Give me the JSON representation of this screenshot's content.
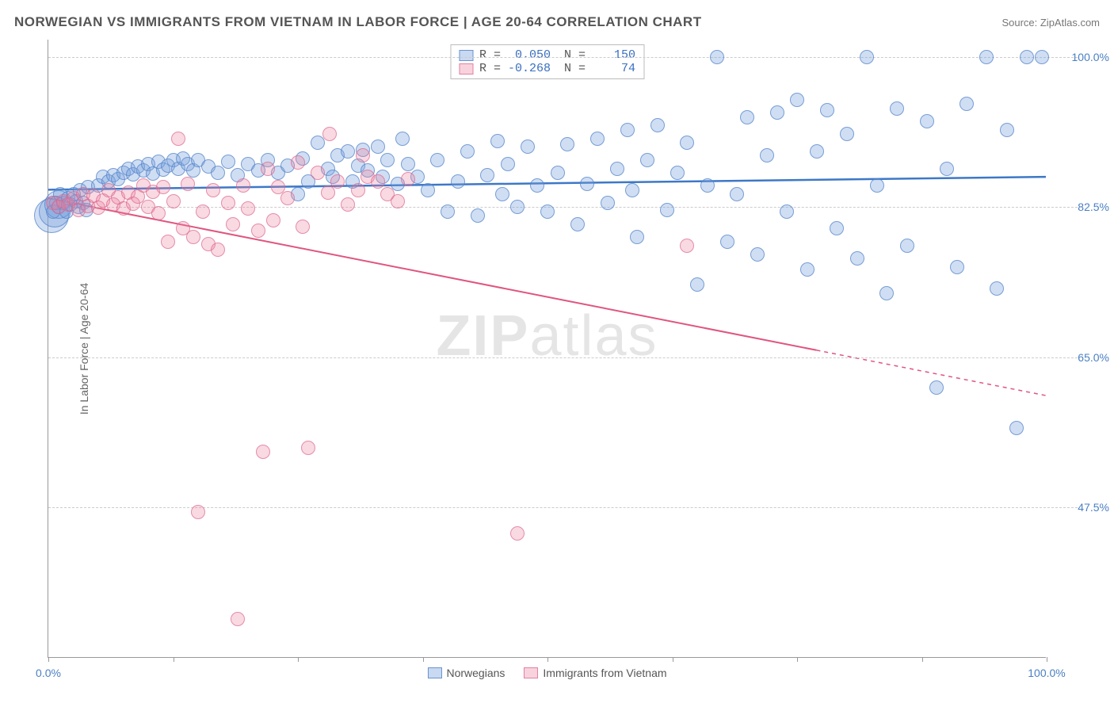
{
  "title": "NORWEGIAN VS IMMIGRANTS FROM VIETNAM IN LABOR FORCE | AGE 20-64 CORRELATION CHART",
  "source": "Source: ZipAtlas.com",
  "watermark_a": "ZIP",
  "watermark_b": "atlas",
  "chart": {
    "type": "scatter",
    "y_axis_title": "In Labor Force | Age 20-64",
    "xlim": [
      0,
      100
    ],
    "ylim": [
      30,
      102
    ],
    "y_ticks": [
      47.5,
      65.0,
      82.5,
      100.0
    ],
    "y_tick_labels": [
      "47.5%",
      "65.0%",
      "82.5%",
      "100.0%"
    ],
    "x_ticks": [
      0,
      12.5,
      25,
      37.5,
      50,
      62.5,
      75,
      87.5,
      100
    ],
    "x_tick_labels": {
      "0": "0.0%",
      "100": "100.0%"
    },
    "grid_color": "#cccccc",
    "axis_color": "#999999",
    "background_color": "#ffffff",
    "marker_radius": 9,
    "series": [
      {
        "name": "Norwegians",
        "color_fill": "rgba(120,160,220,0.35)",
        "color_stroke": "rgba(80,130,200,0.7)",
        "R": "0.050",
        "N": "150",
        "trend": {
          "y_start": 84.5,
          "y_end": 86.0,
          "stroke": "#3d78c7",
          "width": 2.5,
          "x_solid_start": 0,
          "x_solid_end": 100
        },
        "points": [
          [
            0.5,
            82
          ],
          [
            0.8,
            83
          ],
          [
            1,
            82.5
          ],
          [
            1.2,
            84
          ],
          [
            1.5,
            83
          ],
          [
            1.8,
            82
          ],
          [
            2,
            83.5
          ],
          [
            2.2,
            82.8
          ],
          [
            2.5,
            84
          ],
          [
            2.8,
            83.2
          ],
          [
            3,
            82.5
          ],
          [
            3.2,
            84.5
          ],
          [
            3.5,
            83
          ],
          [
            3.8,
            82.2
          ],
          [
            4,
            84.8
          ],
          [
            5,
            85
          ],
          [
            5.5,
            86
          ],
          [
            6,
            85.5
          ],
          [
            6.5,
            86.2
          ],
          [
            7,
            85.8
          ],
          [
            7.5,
            86.5
          ],
          [
            8,
            87
          ],
          [
            8.5,
            86.3
          ],
          [
            9,
            87.2
          ],
          [
            9.5,
            86.8
          ],
          [
            10,
            87.5
          ],
          [
            10.5,
            86.4
          ],
          [
            11,
            87.8
          ],
          [
            11.5,
            86.9
          ],
          [
            12,
            87.3
          ],
          [
            12.5,
            88
          ],
          [
            13,
            87
          ],
          [
            13.5,
            88.2
          ],
          [
            14,
            87.5
          ],
          [
            14.5,
            86.8
          ],
          [
            15,
            88
          ],
          [
            16,
            87.2
          ],
          [
            17,
            86.5
          ],
          [
            18,
            87.8
          ],
          [
            19,
            86.2
          ],
          [
            20,
            87.5
          ],
          [
            21,
            86.8
          ],
          [
            22,
            88
          ],
          [
            23,
            86.5
          ],
          [
            24,
            87.3
          ],
          [
            25,
            84
          ],
          [
            25.5,
            88.2
          ],
          [
            26,
            85.5
          ],
          [
            27,
            90
          ],
          [
            28,
            87
          ],
          [
            28.5,
            86
          ],
          [
            29,
            88.5
          ],
          [
            30,
            89
          ],
          [
            30.5,
            85.5
          ],
          [
            31,
            87.3
          ],
          [
            31.5,
            89.2
          ],
          [
            32,
            86.8
          ],
          [
            33,
            89.5
          ],
          [
            33.5,
            86
          ],
          [
            34,
            88
          ],
          [
            35,
            85.2
          ],
          [
            35.5,
            90.5
          ],
          [
            36,
            87.5
          ],
          [
            37,
            86
          ],
          [
            38,
            84.5
          ],
          [
            39,
            88
          ],
          [
            40,
            82
          ],
          [
            41,
            85.5
          ],
          [
            42,
            89
          ],
          [
            43,
            81.5
          ],
          [
            44,
            86.2
          ],
          [
            45,
            90.2
          ],
          [
            45.5,
            84
          ],
          [
            46,
            87.5
          ],
          [
            47,
            82.5
          ],
          [
            48,
            89.5
          ],
          [
            49,
            85
          ],
          [
            50,
            82
          ],
          [
            51,
            86.5
          ],
          [
            52,
            89.8
          ],
          [
            53,
            80.5
          ],
          [
            54,
            85.2
          ],
          [
            55,
            90.5
          ],
          [
            56,
            83
          ],
          [
            57,
            87
          ],
          [
            58,
            91.5
          ],
          [
            58.5,
            84.5
          ],
          [
            59,
            79
          ],
          [
            60,
            88
          ],
          [
            61,
            92
          ],
          [
            62,
            82.2
          ],
          [
            63,
            86.5
          ],
          [
            64,
            90
          ],
          [
            65,
            73.5
          ],
          [
            66,
            85
          ],
          [
            67,
            100
          ],
          [
            68,
            78.5
          ],
          [
            69,
            84
          ],
          [
            70,
            93
          ],
          [
            71,
            77
          ],
          [
            72,
            88.5
          ],
          [
            73,
            93.5
          ],
          [
            74,
            82
          ],
          [
            75,
            95
          ],
          [
            76,
            75.2
          ],
          [
            77,
            89
          ],
          [
            78,
            93.8
          ],
          [
            79,
            80
          ],
          [
            80,
            91
          ],
          [
            81,
            76.5
          ],
          [
            82,
            100
          ],
          [
            83,
            85
          ],
          [
            84,
            72.5
          ],
          [
            85,
            94
          ],
          [
            86,
            78
          ],
          [
            88,
            92.5
          ],
          [
            89,
            61.5
          ],
          [
            90,
            87
          ],
          [
            91,
            75.5
          ],
          [
            92,
            94.5
          ],
          [
            94,
            100
          ],
          [
            95,
            73
          ],
          [
            96,
            91.5
          ],
          [
            97,
            56.8
          ],
          [
            98,
            100
          ],
          [
            99.5,
            100
          ]
        ],
        "large_points": [
          [
            0.3,
            81.5,
            22
          ],
          [
            0.6,
            82,
            20
          ],
          [
            1,
            82.8,
            18
          ]
        ]
      },
      {
        "name": "Immigrants from Vietnam",
        "color_fill": "rgba(235,130,160,0.3)",
        "color_stroke": "rgba(220,100,140,0.65)",
        "R": "-0.268",
        "N": "74",
        "trend": {
          "y_start": 83.5,
          "y_end": 60.5,
          "stroke": "#e0557f",
          "width": 2,
          "x_solid_start": 0,
          "x_solid_end": 77,
          "dash_after": true
        },
        "points": [
          [
            0.5,
            83
          ],
          [
            1,
            82.5
          ],
          [
            1.5,
            83.2
          ],
          [
            2,
            82.8
          ],
          [
            2.5,
            83.5
          ],
          [
            3,
            82.2
          ],
          [
            3.5,
            84
          ],
          [
            4,
            82.6
          ],
          [
            4.5,
            83.8
          ],
          [
            5,
            82.4
          ],
          [
            5.5,
            83.3
          ],
          [
            6,
            84.5
          ],
          [
            6.5,
            82.8
          ],
          [
            7,
            83.6
          ],
          [
            7.5,
            82.3
          ],
          [
            8,
            84.2
          ],
          [
            8.5,
            82.9
          ],
          [
            9,
            83.7
          ],
          [
            9.5,
            85
          ],
          [
            10,
            82.5
          ],
          [
            10.5,
            84.3
          ],
          [
            11,
            81.8
          ],
          [
            11.5,
            84.8
          ],
          [
            12,
            78.5
          ],
          [
            12.5,
            83.2
          ],
          [
            13,
            90.5
          ],
          [
            13.5,
            80
          ],
          [
            14,
            85.2
          ],
          [
            14.5,
            79
          ],
          [
            15,
            47
          ],
          [
            15.5,
            82
          ],
          [
            16,
            78.2
          ],
          [
            16.5,
            84.5
          ],
          [
            17,
            77.5
          ],
          [
            18,
            83
          ],
          [
            18.5,
            80.5
          ],
          [
            19,
            34.5
          ],
          [
            19.5,
            85
          ],
          [
            20,
            82.3
          ],
          [
            21,
            79.8
          ],
          [
            21.5,
            54
          ],
          [
            22,
            87
          ],
          [
            22.5,
            81
          ],
          [
            23,
            84.8
          ],
          [
            24,
            83.5
          ],
          [
            25,
            87.7
          ],
          [
            25.5,
            80.2
          ],
          [
            26,
            54.5
          ],
          [
            27,
            86.5
          ],
          [
            28,
            84.2
          ],
          [
            28.2,
            91
          ],
          [
            29,
            85.5
          ],
          [
            30,
            82.8
          ],
          [
            31,
            84.5
          ],
          [
            31.5,
            88.5
          ],
          [
            32,
            86
          ],
          [
            33,
            85.5
          ],
          [
            34,
            84
          ],
          [
            35,
            83.2
          ],
          [
            36,
            85.8
          ],
          [
            47,
            44.5
          ],
          [
            64,
            78
          ]
        ]
      }
    ]
  },
  "legend": {
    "series1_label": "Norwegians",
    "series2_label": "Immigrants from Vietnam"
  }
}
